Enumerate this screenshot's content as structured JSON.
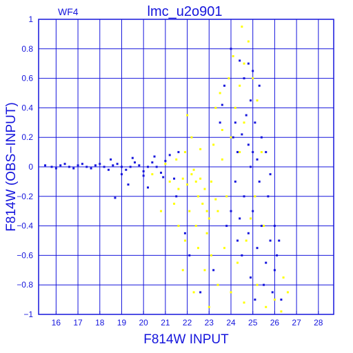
{
  "panel_label": "WF4",
  "chart_data": {
    "type": "scatter",
    "title": "lmc_u2o901",
    "xlabel": "F814W INPUT",
    "ylabel": "F814W (OBS−INPUT)",
    "xlim": [
      15.2,
      28.7
    ],
    "ylim": [
      -1,
      1
    ],
    "xticks": [
      "16",
      "17",
      "18",
      "19",
      "20",
      "21",
      "22",
      "23",
      "24",
      "25",
      "26",
      "27",
      "28"
    ],
    "yticks": [
      "1",
      "0.8",
      "0.6",
      "0.4",
      "0.2",
      "0",
      "−0.2",
      "−0.4",
      "−0.6",
      "−0.8",
      "−1"
    ],
    "grid": true,
    "colors": {
      "blue": "#1414dc",
      "yellow": "#ffff00"
    },
    "series": [
      {
        "color": "blue",
        "points": [
          [
            15.5,
            0.01
          ],
          [
            15.8,
            0.0
          ],
          [
            16.2,
            0.01
          ],
          [
            16.6,
            0.0
          ],
          [
            17.0,
            0.01
          ],
          [
            17.4,
            0.0
          ],
          [
            17.8,
            0.01
          ],
          [
            18.2,
            0.0
          ],
          [
            18.6,
            0.01
          ],
          [
            19.0,
            0.0
          ],
          [
            19.4,
            0.0
          ],
          [
            19.8,
            0.01
          ],
          [
            20.2,
            0.0
          ],
          [
            20.6,
            0.0
          ],
          [
            16.0,
            -0.01
          ],
          [
            16.4,
            0.02
          ],
          [
            16.8,
            -0.01
          ],
          [
            17.2,
            0.02
          ],
          [
            17.6,
            -0.01
          ],
          [
            18.0,
            0.02
          ],
          [
            18.4,
            -0.02
          ],
          [
            18.8,
            0.02
          ],
          [
            19.2,
            -0.02
          ],
          [
            19.6,
            0.03
          ],
          [
            20.0,
            -0.03
          ],
          [
            20.4,
            0.03
          ],
          [
            20.8,
            -0.04
          ],
          [
            21.0,
            0.04
          ],
          [
            18.5,
            0.05
          ],
          [
            19.0,
            -0.05
          ],
          [
            19.5,
            0.06
          ],
          [
            20.0,
            -0.06
          ],
          [
            20.5,
            0.07
          ],
          [
            20.9,
            -0.07
          ],
          [
            19.3,
            -0.12
          ],
          [
            20.2,
            -0.14
          ],
          [
            18.7,
            -0.21
          ],
          [
            21.2,
            0.08
          ],
          [
            21.4,
            -0.08
          ],
          [
            21.6,
            0.1
          ],
          [
            21.5,
            -0.2
          ],
          [
            23.6,
            0.42
          ],
          [
            24.0,
            0.8
          ],
          [
            24.4,
            0.72
          ],
          [
            23.7,
            0.55
          ],
          [
            24.2,
            0.3
          ],
          [
            24.5,
            0.22
          ],
          [
            24.8,
            0.15
          ],
          [
            25.0,
            0.1
          ],
          [
            25.2,
            0.05
          ],
          [
            24.3,
            0.1
          ],
          [
            24.7,
            0.35
          ],
          [
            25.1,
            0.3
          ],
          [
            25.4,
            0.2
          ],
          [
            24.9,
            0.45
          ],
          [
            25.3,
            0.55
          ],
          [
            24.6,
            0.6
          ],
          [
            25.0,
            0.65
          ],
          [
            24.8,
            0.7
          ],
          [
            24.2,
            -0.1
          ],
          [
            24.6,
            -0.2
          ],
          [
            25.0,
            -0.3
          ],
          [
            25.4,
            -0.4
          ],
          [
            25.8,
            -0.5
          ],
          [
            24.4,
            -0.35
          ],
          [
            24.8,
            -0.45
          ],
          [
            25.2,
            -0.55
          ],
          [
            25.6,
            -0.65
          ],
          [
            26.0,
            -0.7
          ],
          [
            25.5,
            -0.8
          ],
          [
            25.9,
            -0.85
          ],
          [
            26.1,
            -0.6
          ],
          [
            26.0,
            -0.4
          ],
          [
            25.7,
            -0.2
          ],
          [
            25.3,
            -0.1
          ],
          [
            24.9,
            0.0
          ],
          [
            25.6,
            0.1
          ],
          [
            25.8,
            -0.05
          ],
          [
            26.2,
            -0.5
          ],
          [
            26.3,
            -0.9
          ],
          [
            24.1,
            0.2
          ],
          [
            24.3,
            -0.5
          ],
          [
            24.0,
            -0.3
          ],
          [
            23.8,
            -0.4
          ],
          [
            24.5,
            -0.6
          ],
          [
            24.9,
            -0.75
          ],
          [
            25.1,
            -0.9
          ],
          [
            22.1,
            -0.6
          ],
          [
            22.6,
            -0.85
          ],
          [
            21.9,
            -0.45
          ],
          [
            23.2,
            -0.7
          ],
          [
            23.5,
            0.3
          ]
        ]
      },
      {
        "color": "yellow",
        "points": [
          [
            22.2,
            -0.05
          ],
          [
            22.4,
            -0.1
          ],
          [
            22.6,
            -0.08
          ],
          [
            22.0,
            -0.12
          ],
          [
            22.8,
            -0.15
          ],
          [
            22.5,
            -0.2
          ],
          [
            22.3,
            -0.02
          ],
          [
            22.7,
            -0.25
          ],
          [
            22.9,
            -0.3
          ],
          [
            23.1,
            -0.1
          ],
          [
            23.3,
            -0.22
          ],
          [
            21.8,
            -0.08
          ],
          [
            21.6,
            -0.15
          ],
          [
            23.0,
            -0.35
          ],
          [
            22.1,
            -0.3
          ],
          [
            22.4,
            -0.4
          ],
          [
            22.9,
            -0.45
          ],
          [
            23.4,
            -0.3
          ],
          [
            21.5,
            0.05
          ],
          [
            21.9,
            0.1
          ],
          [
            22.6,
            0.12
          ],
          [
            23.2,
            0.15
          ],
          [
            23.6,
            0.05
          ],
          [
            21.4,
            -0.25
          ],
          [
            23.8,
            -0.2
          ],
          [
            24.0,
            0.2
          ],
          [
            24.2,
            0.4
          ],
          [
            24.4,
            0.55
          ],
          [
            24.6,
            0.7
          ],
          [
            24.8,
            0.85
          ],
          [
            24.5,
            0.95
          ],
          [
            25.0,
            0.6
          ],
          [
            25.2,
            0.45
          ],
          [
            23.9,
            0.6
          ],
          [
            23.5,
            0.5
          ],
          [
            24.1,
            0.75
          ],
          [
            24.7,
            -0.5
          ],
          [
            24.3,
            -0.65
          ],
          [
            23.7,
            -0.55
          ],
          [
            23.1,
            -0.6
          ],
          [
            22.8,
            -0.7
          ],
          [
            23.4,
            -0.8
          ],
          [
            24.0,
            -0.85
          ],
          [
            24.6,
            -0.92
          ],
          [
            25.2,
            -0.8
          ],
          [
            25.6,
            -0.95
          ],
          [
            26.0,
            -0.9
          ],
          [
            26.3,
            -0.98
          ],
          [
            23.0,
            -0.95
          ],
          [
            22.5,
            -0.55
          ],
          [
            21.9,
            -0.5
          ],
          [
            21.6,
            -0.4
          ],
          [
            21.2,
            -0.1
          ],
          [
            21.0,
            0.02
          ],
          [
            20.8,
            -0.3
          ],
          [
            25.4,
            0.1
          ],
          [
            25.1,
            -0.2
          ],
          [
            24.9,
            -0.35
          ],
          [
            23.6,
            0.25
          ],
          [
            24.4,
            0.1
          ],
          [
            22.2,
            0.2
          ],
          [
            22.0,
            0.35
          ],
          [
            23.3,
            0.4
          ],
          [
            24.6,
            0.3
          ],
          [
            25.5,
            -0.4
          ],
          [
            21.8,
            -0.7
          ],
          [
            22.3,
            -0.85
          ],
          [
            26.4,
            -0.75
          ],
          [
            26.6,
            -0.85
          ],
          [
            20.4,
            -0.05
          ]
        ]
      }
    ]
  }
}
